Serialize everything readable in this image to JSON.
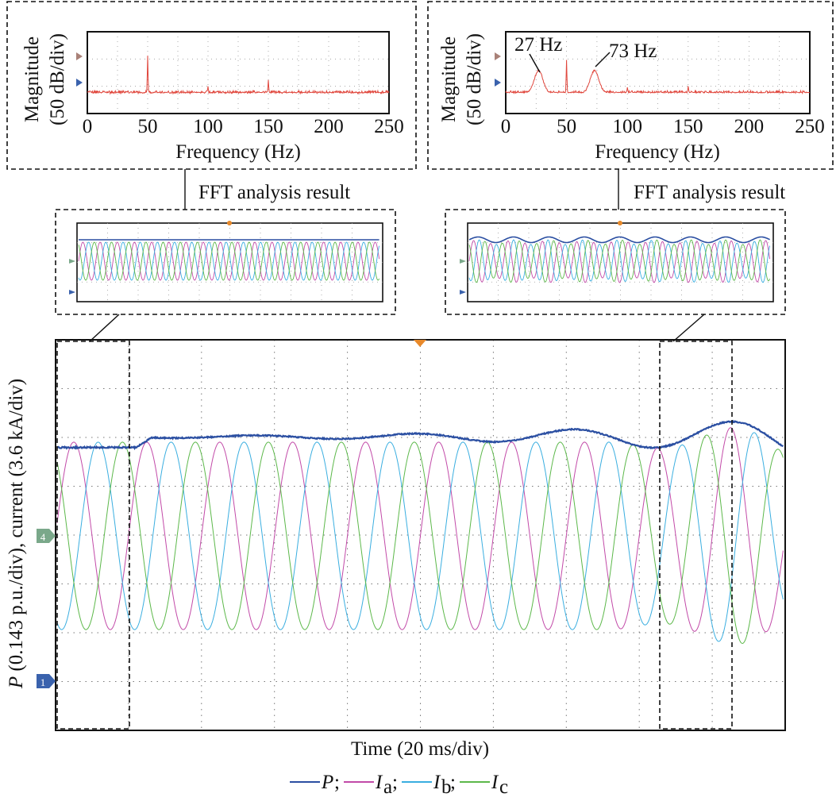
{
  "captions": {
    "fft_left": "FFT analysis result",
    "fft_right": "FFT analysis result"
  },
  "markers": {
    "ch4": "4",
    "ch1": "1"
  },
  "legend": [
    {
      "symbol": "P",
      "sub": "",
      "sep": ";",
      "color": "#2b4fa2"
    },
    {
      "symbol": "I",
      "sub": "a",
      "sep": ";",
      "color": "#c24aa8"
    },
    {
      "symbol": "I",
      "sub": "b",
      "sep": ";",
      "color": "#3aaee0"
    },
    {
      "symbol": "I",
      "sub": "c",
      "sep": "",
      "color": "#5cb84a"
    }
  ],
  "colors": {
    "P": "#2b4fa2",
    "Ia": "#c24aa8",
    "Ib": "#3aaee0",
    "Ic": "#5cb84a",
    "spectrum": "#e0463c",
    "trigger": "#e8892a"
  },
  "chart_data": [
    {
      "type": "line",
      "id": "spectrum-left",
      "xlabel": "Frequency (Hz)",
      "ylabel_line1": "Magnitude",
      "ylabel_line2": "(50 dB/div)",
      "xlim": [
        0,
        250
      ],
      "xticks": [
        0,
        50,
        100,
        150,
        200,
        250
      ],
      "baseline_db": -70,
      "peaks": [
        {
          "x": 50,
          "y": 0
        },
        {
          "x": 100,
          "y": -58
        },
        {
          "x": 150,
          "y": -45
        }
      ],
      "annotations": []
    },
    {
      "type": "line",
      "id": "spectrum-right",
      "xlabel": "Frequency (Hz)",
      "ylabel_line1": "Magnitude",
      "ylabel_line2": "(50 dB/div)",
      "xlim": [
        0,
        250
      ],
      "xticks": [
        0,
        50,
        100,
        150,
        200,
        250
      ],
      "baseline_db": -70,
      "peaks": [
        {
          "x": 27,
          "y": -27
        },
        {
          "x": 50,
          "y": -8
        },
        {
          "x": 73,
          "y": -27
        },
        {
          "x": 100,
          "y": -60
        },
        {
          "x": 150,
          "y": -58
        }
      ],
      "annotations": [
        {
          "text": "27 Hz",
          "x": 27
        },
        {
          "text": "73 Hz",
          "x": 73
        }
      ]
    },
    {
      "type": "line",
      "id": "time-domain",
      "xlabel": "Time (20 ms/div)",
      "ylabel_parts": {
        "italic": "P",
        "rest": " (0.143 p.u./div), current (3.6 kA/div)"
      },
      "x_divisions": 10,
      "y_divisions": 8,
      "series": [
        {
          "name": "P",
          "base_level_div": 6.2,
          "step_at_div": 1.1,
          "step_to_div": 6.5,
          "oscillation_freq_hz": 23,
          "oscillation_growth": "exponential"
        },
        {
          "name": "Ia",
          "frequency_hz": 50,
          "amplitude_div": 2.0
        },
        {
          "name": "Ib",
          "frequency_hz": 50,
          "amplitude_div": 2.0
        },
        {
          "name": "Ic",
          "frequency_hz": 50,
          "amplitude_div": 2.0
        }
      ]
    }
  ]
}
